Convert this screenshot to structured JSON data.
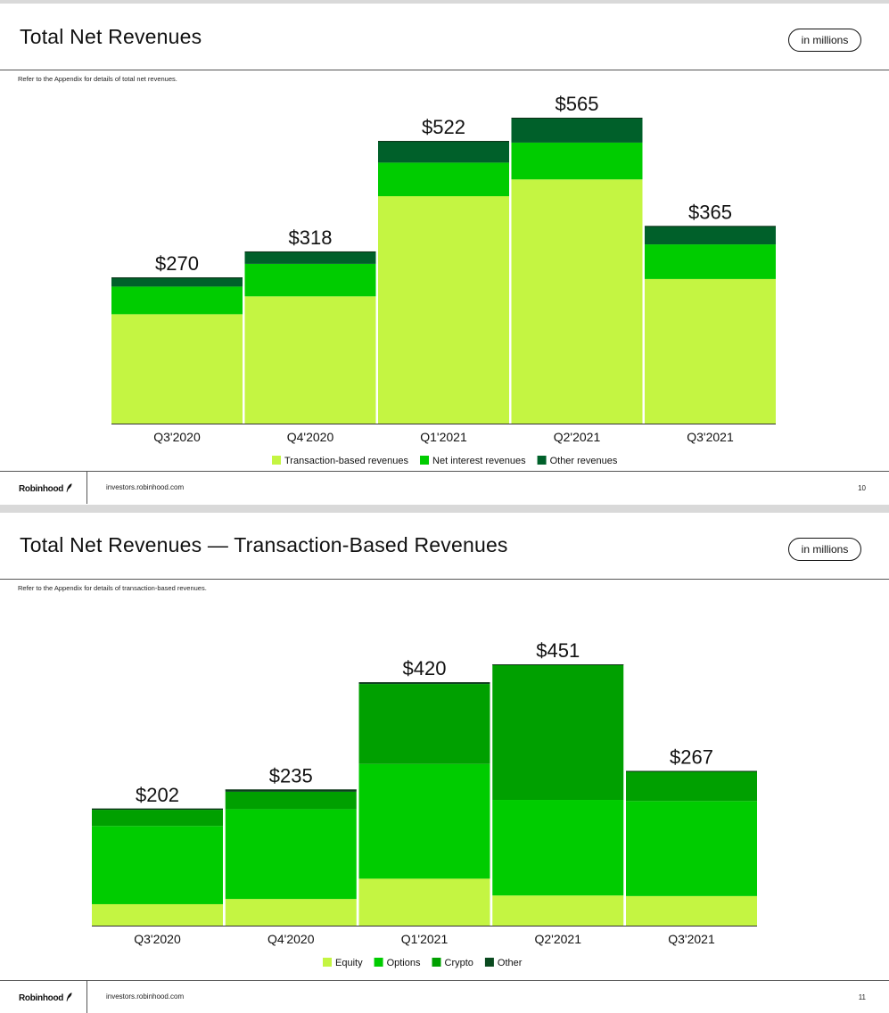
{
  "colors": {
    "lime": "#c4f542",
    "bright_green": "#00cc00",
    "mid_green": "#009900",
    "dark_green": "#00602a",
    "crypto_green": "#00a000",
    "other_dark": "#0a4a1f"
  },
  "slides": [
    {
      "title": "Total Net Revenues",
      "badge": "in millions",
      "note": "Refer to the Appendix for details of total net revenues.",
      "footer": {
        "brand": "Robinhood",
        "site": "investors.robinhood.com",
        "page": "10"
      }
    },
    {
      "title": "Total Net Revenues — Transaction-Based Revenues",
      "badge": "in millions",
      "note": "Refer to the Appendix for details of transaction-based revenues.",
      "footer": {
        "brand": "Robinhood",
        "site": "investors.robinhood.com",
        "page": "11"
      }
    }
  ],
  "chart_data": [
    {
      "type": "bar",
      "stacked": true,
      "title": "Total Net Revenues",
      "xlabel": "",
      "ylabel": "",
      "categories": [
        "Q3'2020",
        "Q4'2020",
        "Q1'2021",
        "Q2'2021",
        "Q3'2021"
      ],
      "totals": [
        "$270",
        "$318",
        "$522",
        "$565",
        "$365"
      ],
      "series": [
        {
          "name": "Transaction-based revenues",
          "color": "#c4f542",
          "values": [
            202,
            235,
            420,
            451,
            267
          ]
        },
        {
          "name": "Net interest revenues",
          "color": "#00cc00",
          "values": [
            51,
            60,
            62,
            68,
            64
          ]
        },
        {
          "name": "Other revenues",
          "color": "#00602a",
          "values": [
            17,
            23,
            40,
            46,
            34
          ]
        }
      ],
      "ylim": [
        0,
        565
      ],
      "legend": "bottom",
      "grid": false
    },
    {
      "type": "bar",
      "stacked": true,
      "title": "Total Net Revenues — Transaction-Based Revenues",
      "xlabel": "",
      "ylabel": "",
      "categories": [
        "Q3'2020",
        "Q4'2020",
        "Q1'2021",
        "Q2'2021",
        "Q3'2021"
      ],
      "totals": [
        "$202",
        "$235",
        "$420",
        "$451",
        "$267"
      ],
      "series": [
        {
          "name": "Equity",
          "color": "#c4f542",
          "values": [
            37,
            46,
            81,
            52,
            51
          ]
        },
        {
          "name": "Options",
          "color": "#00cc00",
          "values": [
            135,
            155,
            198,
            165,
            164
          ]
        },
        {
          "name": "Crypto",
          "color": "#00a000",
          "values": [
            28,
            30,
            138,
            233,
            51
          ]
        },
        {
          "name": "Other",
          "color": "#0a4a1f",
          "values": [
            2,
            4,
            3,
            1,
            1
          ]
        }
      ],
      "ylim": [
        0,
        451
      ],
      "legend": "bottom",
      "grid": false
    }
  ]
}
